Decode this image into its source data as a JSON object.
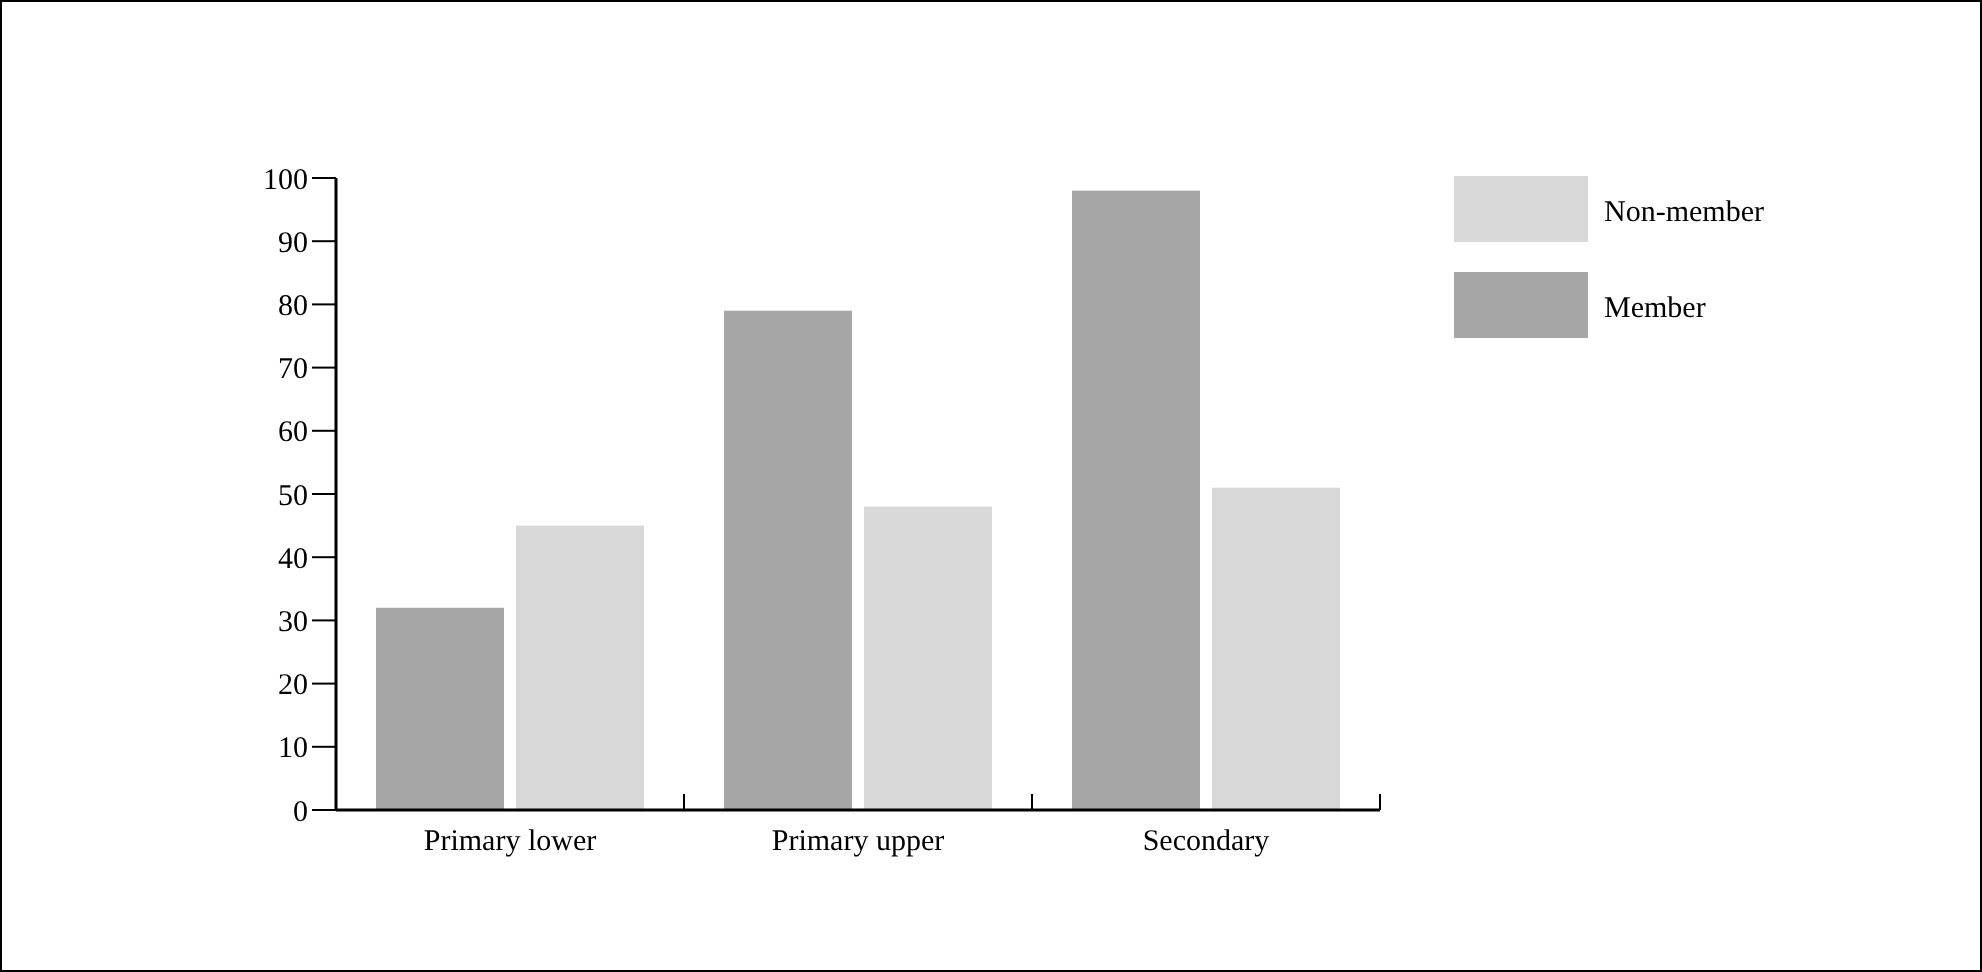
{
  "chart_data": {
    "type": "bar",
    "categories": [
      "Primary lower",
      "Primary upper",
      "Secondary"
    ],
    "series": [
      {
        "name": "Member",
        "color": "#a6a6a6",
        "values": [
          32,
          79,
          98
        ]
      },
      {
        "name": "Non-member",
        "color": "#d9d9d9",
        "values": [
          45,
          48,
          51
        ]
      }
    ],
    "ylim": [
      0,
      100
    ],
    "yticks": [
      0,
      10,
      20,
      30,
      40,
      50,
      60,
      70,
      80,
      90,
      100
    ],
    "grid": false,
    "legend": "right"
  }
}
